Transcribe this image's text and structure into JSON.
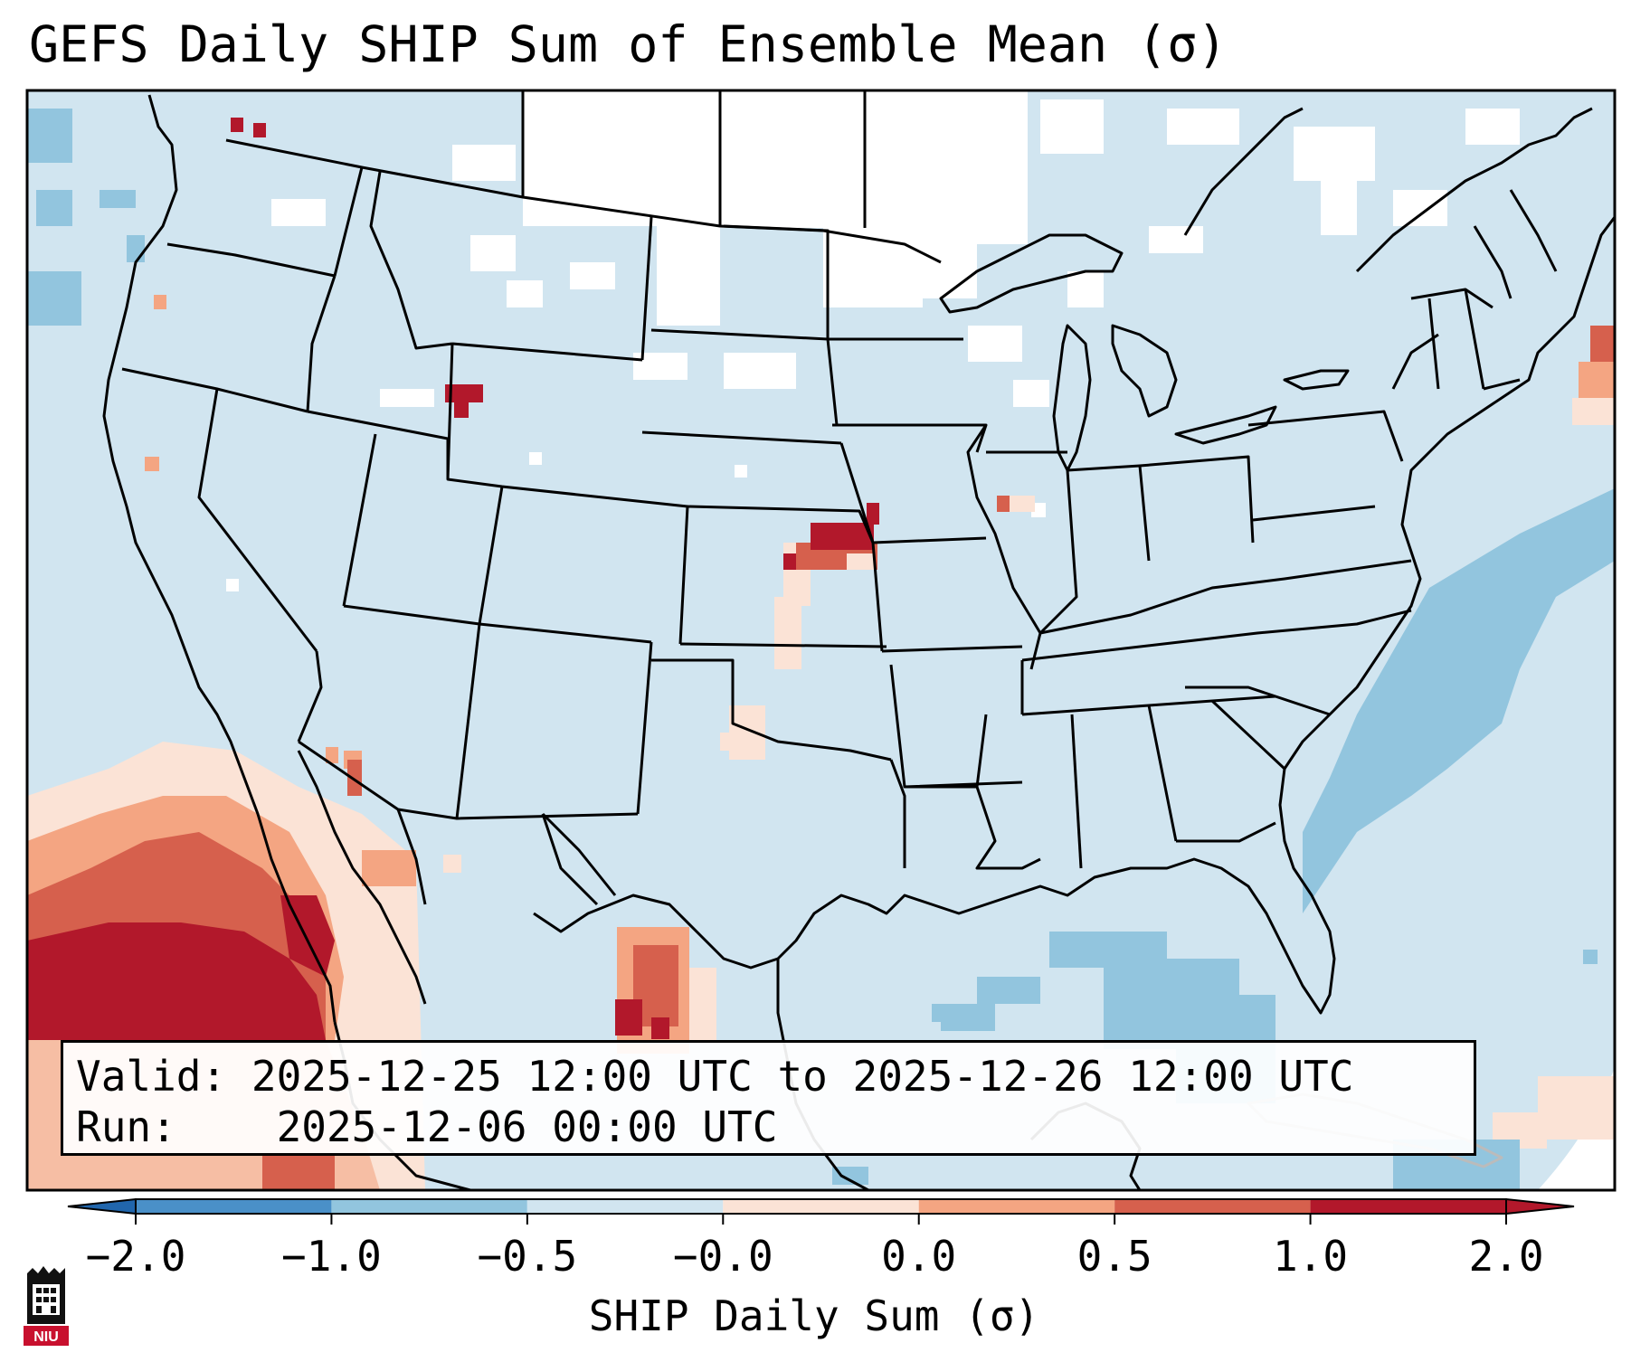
{
  "title": "GEFS Daily SHIP Sum of Ensemble Mean (σ)",
  "info": {
    "valid_label": "Valid:",
    "valid_value": "2025-12-25 12:00 UTC to 2025-12-26 12:00 UTC",
    "run_label": "Run:",
    "run_value": "2025-12-06 00:00 UTC"
  },
  "colorbar": {
    "label": "SHIP Daily Sum (σ)",
    "ticks": [
      "−2.0",
      "−1.0",
      "−0.5",
      "−0.0",
      "0.0",
      "0.5",
      "1.0",
      "2.0"
    ],
    "bin_colors": [
      "#4a90c8",
      "#92c5de",
      "#d1e5f0",
      "#fbe3d6",
      "#f4a582",
      "#d6604d",
      "#b2182b"
    ],
    "under_color": "#2166ac",
    "over_color": "#b2182b"
  },
  "colors": {
    "background_field": "#d1e5f0",
    "no_data": "#ffffff",
    "border_lines": "#000000"
  },
  "logo": {
    "text": "NIU"
  }
}
